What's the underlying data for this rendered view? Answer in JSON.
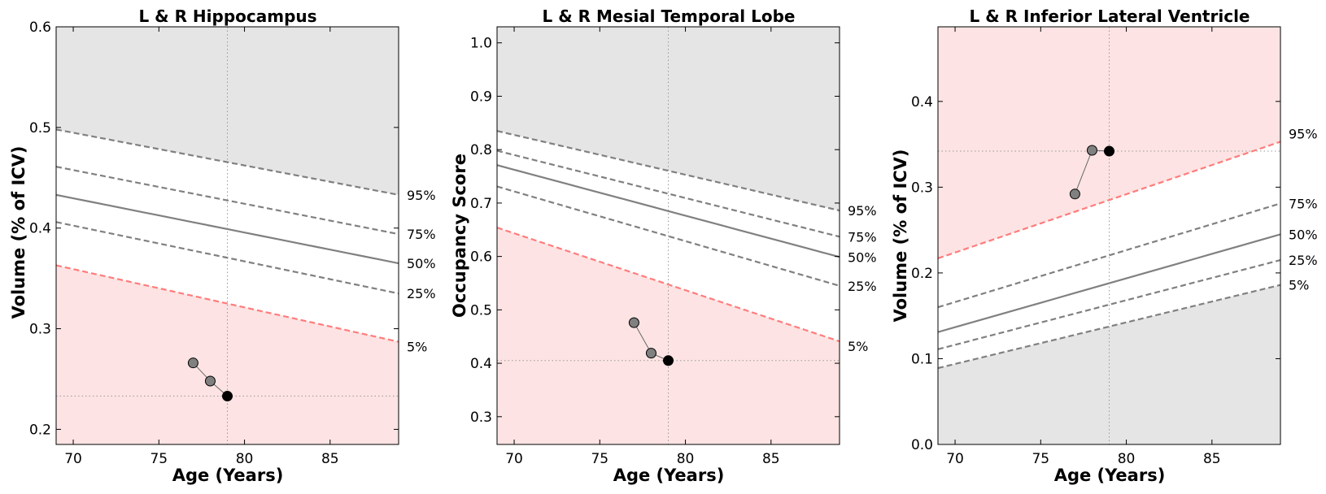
{
  "colors": {
    "normal_band": "#ffffff",
    "favorable_region": "#e5e5e5",
    "abnormal_region": "#fde3e3",
    "percentile_line": "#808080",
    "cutoff_line": "#ff7c7c",
    "history_point": "#808080",
    "current_point": "#000000"
  },
  "chart_data": [
    {
      "type": "line",
      "title": "L & R Hippocampus",
      "xlabel": "Age (Years)",
      "ylabel": "Volume (% of ICV)",
      "xlim": [
        69,
        89
      ],
      "ylim": [
        0.185,
        0.6
      ],
      "xticks": [
        70,
        75,
        80,
        85
      ],
      "yticks": [
        0.2,
        0.3,
        0.4,
        0.5,
        0.6
      ],
      "ytick_labels": [
        "0.2",
        "0.3",
        "0.4",
        "0.5",
        "0.6"
      ],
      "abnormal_side": "below",
      "percentiles": [
        {
          "label": "95%",
          "start": 0.498,
          "end": 0.433,
          "style": "dashed"
        },
        {
          "label": "75%",
          "start": 0.461,
          "end": 0.394,
          "style": "dashed"
        },
        {
          "label": "50%",
          "start": 0.433,
          "end": 0.365,
          "style": "solid"
        },
        {
          "label": "25%",
          "start": 0.406,
          "end": 0.335,
          "style": "dashed"
        },
        {
          "label": "5%",
          "start": 0.363,
          "end": 0.287,
          "style": "cutoff"
        }
      ],
      "points": [
        {
          "age": 77,
          "value": 0.266
        },
        {
          "age": 78,
          "value": 0.248
        },
        {
          "age": 79,
          "value": 0.233
        }
      ]
    },
    {
      "type": "line",
      "title": "L & R Mesial Temporal Lobe",
      "xlabel": "Age (Years)",
      "ylabel": "Occupancy Score",
      "xlim": [
        69,
        89
      ],
      "ylim": [
        0.248,
        1.03
      ],
      "xticks": [
        70,
        75,
        80,
        85
      ],
      "yticks": [
        0.3,
        0.4,
        0.5,
        0.6,
        0.7,
        0.8,
        0.9,
        1.0
      ],
      "ytick_labels": [
        "0.3",
        "0.4",
        "0.5",
        "0.6",
        "0.7",
        "0.8",
        "0.9",
        "1.0"
      ],
      "abnormal_side": "below",
      "percentiles": [
        {
          "label": "95%",
          "start": 0.835,
          "end": 0.686,
          "style": "dashed"
        },
        {
          "label": "75%",
          "start": 0.798,
          "end": 0.637,
          "style": "dashed"
        },
        {
          "label": "50%",
          "start": 0.771,
          "end": 0.599,
          "style": "solid"
        },
        {
          "label": "25%",
          "start": 0.731,
          "end": 0.545,
          "style": "dashed"
        },
        {
          "label": "5%",
          "start": 0.654,
          "end": 0.441,
          "style": "cutoff"
        }
      ],
      "points": [
        {
          "age": 77,
          "value": 0.476
        },
        {
          "age": 78,
          "value": 0.419
        },
        {
          "age": 79,
          "value": 0.405
        }
      ]
    },
    {
      "type": "line",
      "title": "L & R Inferior Lateral Ventricle",
      "xlabel": "Age (Years)",
      "ylabel": "Volume (% of ICV)",
      "xlim": [
        69,
        89
      ],
      "ylim": [
        0.0,
        0.487
      ],
      "xticks": [
        70,
        75,
        80,
        85
      ],
      "yticks": [
        0.0,
        0.1,
        0.2,
        0.3,
        0.4
      ],
      "ytick_labels": [
        "0.0",
        "0.1",
        "0.2",
        "0.3",
        "0.4"
      ],
      "abnormal_side": "above",
      "percentiles": [
        {
          "label": "95%",
          "start": 0.217,
          "end": 0.353,
          "style": "cutoff"
        },
        {
          "label": "75%",
          "start": 0.16,
          "end": 0.281,
          "style": "dashed"
        },
        {
          "label": "50%",
          "start": 0.131,
          "end": 0.245,
          "style": "solid"
        },
        {
          "label": "25%",
          "start": 0.111,
          "end": 0.215,
          "style": "dashed"
        },
        {
          "label": "5%",
          "start": 0.089,
          "end": 0.186,
          "style": "dashed"
        }
      ],
      "points": [
        {
          "age": 77,
          "value": 0.292
        },
        {
          "age": 78,
          "value": 0.343
        },
        {
          "age": 79,
          "value": 0.342
        }
      ]
    }
  ]
}
